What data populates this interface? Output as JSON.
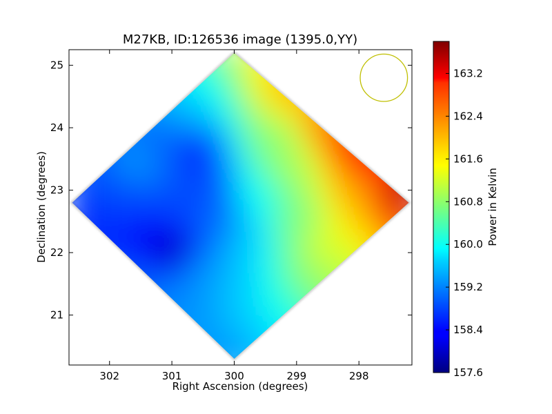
{
  "chart_data": {
    "type": "heatmap",
    "title": "M27KB, ID:126536 image (1395.0,YY)",
    "xlabel": "Right Ascension (degrees)",
    "ylabel": "Declination (degrees)",
    "xlim": [
      302.65,
      297.15
    ],
    "ylim": [
      20.2,
      25.25
    ],
    "x_ticks": [
      302,
      301,
      300,
      299,
      298
    ],
    "y_ticks": [
      21,
      22,
      23,
      24,
      25
    ],
    "x_inverted": true,
    "footprint_shape": "diamond",
    "footprint_vertices": [
      {
        "ra": 300.0,
        "dec": 25.2
      },
      {
        "ra": 297.2,
        "dec": 22.8
      },
      {
        "ra": 300.0,
        "dec": 20.3
      },
      {
        "ra": 302.6,
        "dec": 22.8
      }
    ],
    "colorbar": {
      "label": "Power in Kelvin",
      "colormap": "jet",
      "min": 157.6,
      "max": 163.8,
      "ticks": [
        157.6,
        158.4,
        159.2,
        160.0,
        160.8,
        161.6,
        162.4,
        163.2
      ]
    },
    "beam": {
      "ra": 297.6,
      "dec": 24.8,
      "radius_deg": 0.38,
      "color": "#bfbf00"
    },
    "features": [
      {
        "description": "minimum",
        "ra": 301.0,
        "dec": 22.05,
        "value": 157.9
      },
      {
        "description": "low ridge",
        "ra": 300.6,
        "dec": 23.6,
        "value": 158.6
      },
      {
        "description": "maximum",
        "ra": 297.25,
        "dec": 22.9,
        "value": 163.7
      },
      {
        "description": "east-edge high",
        "ra": 298.3,
        "dec": 23.8,
        "value": 162.6
      },
      {
        "description": "south-east",
        "ra": 298.5,
        "dec": 22.1,
        "value": 161.2
      }
    ]
  }
}
